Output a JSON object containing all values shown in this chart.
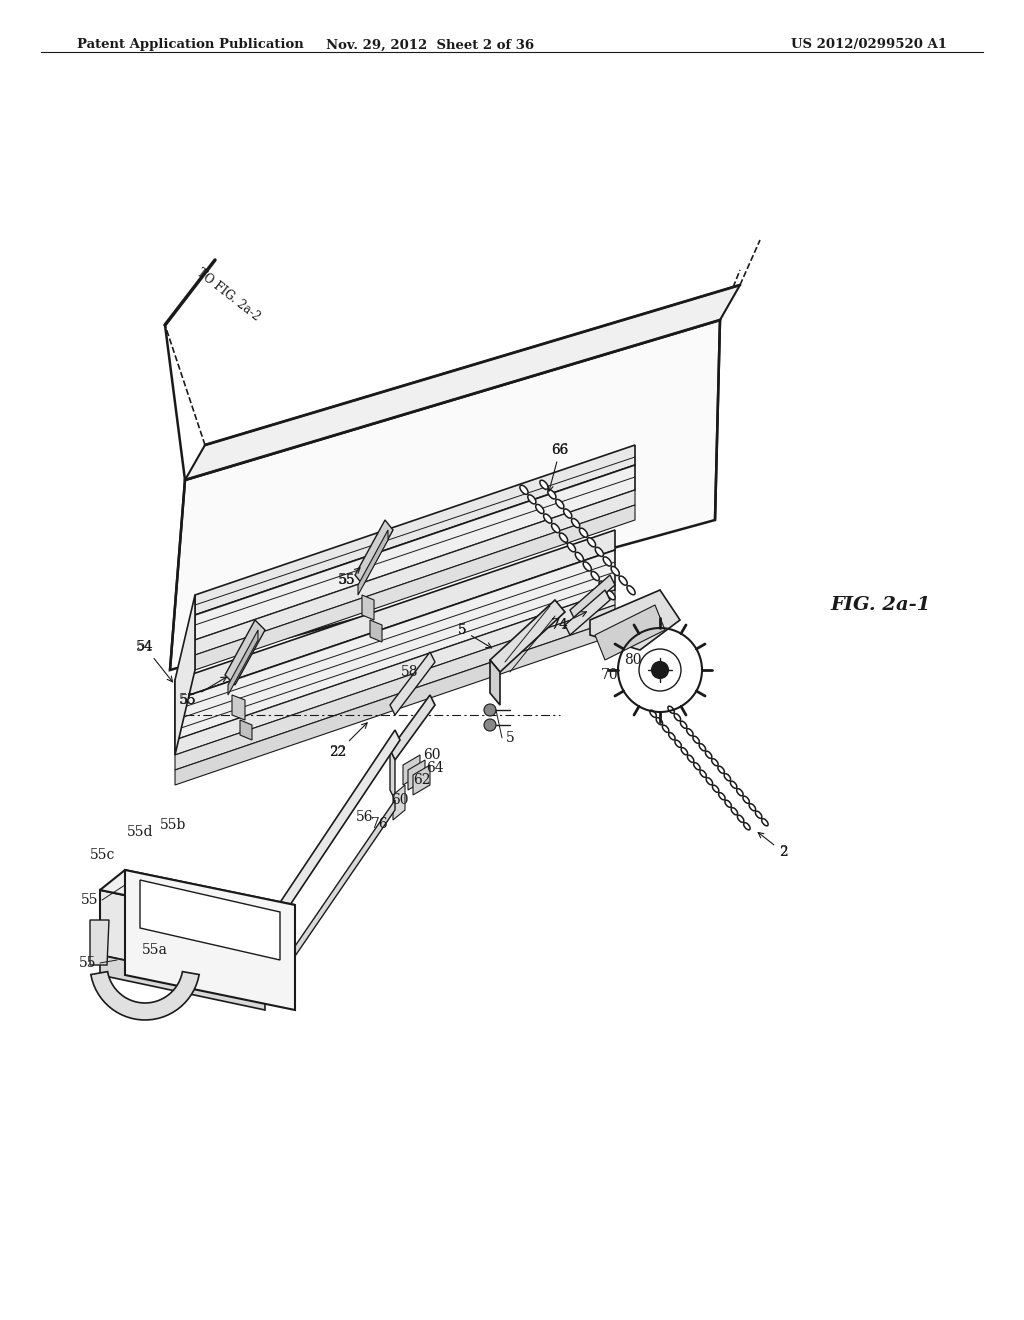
{
  "header_left": "Patent Application Publication",
  "header_center": "Nov. 29, 2012  Sheet 2 of 36",
  "header_right": "US 2012/0299520 A1",
  "fig_label": "FIG. 2a-1",
  "fig_ref": "TO FIG. 2a-2",
  "background_color": "#ffffff",
  "line_color": "#1a1a1a",
  "gray_light": "#e8e8e8",
  "gray_mid": "#cccccc",
  "gray_dark": "#aaaaaa"
}
